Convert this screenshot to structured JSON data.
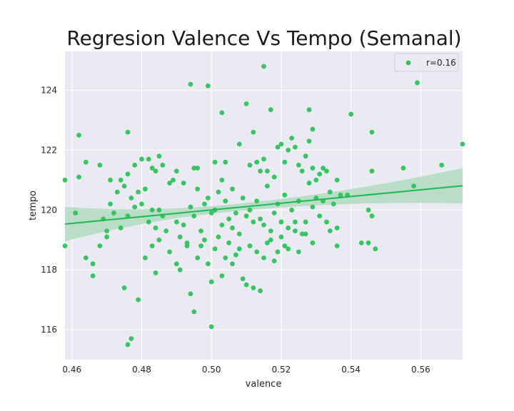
{
  "chart_data": {
    "type": "scatter",
    "title": "Regresion Valence Vs Tempo (Semanal)",
    "xlabel": "valence",
    "ylabel": "tempo",
    "xlim": [
      0.458,
      0.572
    ],
    "ylim": [
      115.0,
      125.3
    ],
    "xticks": [
      0.46,
      0.48,
      0.5,
      0.52,
      0.54,
      0.56
    ],
    "xtick_labels": [
      "0.46",
      "0.48",
      "0.50",
      "0.52",
      "0.54",
      "0.56"
    ],
    "yticks": [
      116,
      118,
      120,
      122,
      124
    ],
    "ytick_labels": [
      "116",
      "118",
      "120",
      "122",
      "124"
    ],
    "grid": true,
    "legend": {
      "label": "r=0.16",
      "placement": "top-right"
    },
    "colors": {
      "points": "#2ec25a",
      "line": "#1db954",
      "band": "#a9d8b8",
      "background": "#eaeaf2",
      "grid": "#ffffff"
    },
    "regression": {
      "x": [
        0.458,
        0.572
      ],
      "y": [
        119.53,
        120.81
      ],
      "ci_lower": [
        118.95,
        120.22
      ],
      "ci_upper": [
        120.1,
        121.4
      ],
      "ci_center_x": 0.505
    },
    "points": [
      [
        0.515,
        124.8
      ],
      [
        0.494,
        124.2
      ],
      [
        0.499,
        124.15
      ],
      [
        0.559,
        124.25
      ],
      [
        0.503,
        123.25
      ],
      [
        0.51,
        123.55
      ],
      [
        0.517,
        123.35
      ],
      [
        0.528,
        123.35
      ],
      [
        0.54,
        123.2
      ],
      [
        0.462,
        122.5
      ],
      [
        0.476,
        122.6
      ],
      [
        0.512,
        122.6
      ],
      [
        0.529,
        122.7
      ],
      [
        0.546,
        122.6
      ],
      [
        0.572,
        122.2
      ],
      [
        0.464,
        121.6
      ],
      [
        0.462,
        121.1
      ],
      [
        0.458,
        121.0
      ],
      [
        0.468,
        121.5
      ],
      [
        0.471,
        121.0
      ],
      [
        0.473,
        120.6
      ],
      [
        0.474,
        121.0
      ],
      [
        0.476,
        121.2
      ],
      [
        0.478,
        121.5
      ],
      [
        0.48,
        121.7
      ],
      [
        0.482,
        121.7
      ],
      [
        0.483,
        121.4
      ],
      [
        0.484,
        121.3
      ],
      [
        0.485,
        121.8
      ],
      [
        0.486,
        121.5
      ],
      [
        0.489,
        121.0
      ],
      [
        0.49,
        121.3
      ],
      [
        0.492,
        120.9
      ],
      [
        0.495,
        121.4
      ],
      [
        0.496,
        121.4
      ],
      [
        0.501,
        121.6
      ],
      [
        0.504,
        121.6
      ],
      [
        0.503,
        121.0
      ],
      [
        0.506,
        120.7
      ],
      [
        0.508,
        122.2
      ],
      [
        0.511,
        121.5
      ],
      [
        0.513,
        121.6
      ],
      [
        0.514,
        121.3
      ],
      [
        0.515,
        121.7
      ],
      [
        0.516,
        121.3
      ],
      [
        0.518,
        121.1
      ],
      [
        0.519,
        122.1
      ],
      [
        0.52,
        122.2
      ],
      [
        0.521,
        121.6
      ],
      [
        0.522,
        122.0
      ],
      [
        0.523,
        122.4
      ],
      [
        0.524,
        122.1
      ],
      [
        0.525,
        121.5
      ],
      [
        0.526,
        121.3
      ],
      [
        0.527,
        121.8
      ],
      [
        0.528,
        122.3
      ],
      [
        0.529,
        121.4
      ],
      [
        0.53,
        121.0
      ],
      [
        0.531,
        121.2
      ],
      [
        0.532,
        121.4
      ],
      [
        0.533,
        121.3
      ],
      [
        0.536,
        121.0
      ],
      [
        0.546,
        121.3
      ],
      [
        0.555,
        121.4
      ],
      [
        0.558,
        120.8
      ],
      [
        0.566,
        121.5
      ],
      [
        0.469,
        119.7
      ],
      [
        0.47,
        119.3
      ],
      [
        0.471,
        120.2
      ],
      [
        0.472,
        119.9
      ],
      [
        0.474,
        119.4
      ],
      [
        0.475,
        120.8
      ],
      [
        0.476,
        119.8
      ],
      [
        0.477,
        120.4
      ],
      [
        0.478,
        120.1
      ],
      [
        0.479,
        120.6
      ],
      [
        0.48,
        120.2
      ],
      [
        0.481,
        120.7
      ],
      [
        0.482,
        119.6
      ],
      [
        0.483,
        120.0
      ],
      [
        0.484,
        119.4
      ],
      [
        0.485,
        120.0
      ],
      [
        0.486,
        119.8
      ],
      [
        0.487,
        119.3
      ],
      [
        0.488,
        120.9
      ],
      [
        0.49,
        119.6
      ],
      [
        0.491,
        119.1
      ],
      [
        0.492,
        119.5
      ],
      [
        0.493,
        118.8
      ],
      [
        0.494,
        120.1
      ],
      [
        0.495,
        119.8
      ],
      [
        0.496,
        120.7
      ],
      [
        0.497,
        119.3
      ],
      [
        0.498,
        120.2
      ],
      [
        0.499,
        120.4
      ],
      [
        0.5,
        119.9
      ],
      [
        0.501,
        120.0
      ],
      [
        0.502,
        120.6
      ],
      [
        0.503,
        119.5
      ],
      [
        0.504,
        120.3
      ],
      [
        0.505,
        119.7
      ],
      [
        0.506,
        119.4
      ],
      [
        0.507,
        119.9
      ],
      [
        0.508,
        119.2
      ],
      [
        0.509,
        120.4
      ],
      [
        0.51,
        119.8
      ],
      [
        0.511,
        120.0
      ],
      [
        0.512,
        119.6
      ],
      [
        0.513,
        120.3
      ],
      [
        0.514,
        119.7
      ],
      [
        0.515,
        119.5
      ],
      [
        0.516,
        120.8
      ],
      [
        0.517,
        119.3
      ],
      [
        0.518,
        119.9
      ],
      [
        0.519,
        120.2
      ],
      [
        0.52,
        119.6
      ],
      [
        0.521,
        120.5
      ],
      [
        0.522,
        119.4
      ],
      [
        0.523,
        120.0
      ],
      [
        0.524,
        119.6
      ],
      [
        0.525,
        120.3
      ],
      [
        0.526,
        119.2
      ],
      [
        0.527,
        119.6
      ],
      [
        0.528,
        120.9
      ],
      [
        0.529,
        120.1
      ],
      [
        0.53,
        120.4
      ],
      [
        0.531,
        119.8
      ],
      [
        0.532,
        120.3
      ],
      [
        0.533,
        119.6
      ],
      [
        0.534,
        120.6
      ],
      [
        0.535,
        120.2
      ],
      [
        0.536,
        119.4
      ],
      [
        0.537,
        120.5
      ],
      [
        0.546,
        119.8
      ],
      [
        0.458,
        118.8
      ],
      [
        0.464,
        118.4
      ],
      [
        0.466,
        118.2
      ],
      [
        0.466,
        117.8
      ],
      [
        0.468,
        118.8
      ],
      [
        0.47,
        119.1
      ],
      [
        0.475,
        117.4
      ],
      [
        0.479,
        117.0
      ],
      [
        0.481,
        118.4
      ],
      [
        0.483,
        118.8
      ],
      [
        0.484,
        117.9
      ],
      [
        0.485,
        119.0
      ],
      [
        0.488,
        118.6
      ],
      [
        0.49,
        118.2
      ],
      [
        0.491,
        118.0
      ],
      [
        0.493,
        118.9
      ],
      [
        0.494,
        117.2
      ],
      [
        0.495,
        116.6
      ],
      [
        0.496,
        118.4
      ],
      [
        0.497,
        118.8
      ],
      [
        0.498,
        119.0
      ],
      [
        0.499,
        118.2
      ],
      [
        0.5,
        117.6
      ],
      [
        0.501,
        118.7
      ],
      [
        0.502,
        119.1
      ],
      [
        0.503,
        117.8
      ],
      [
        0.504,
        118.4
      ],
      [
        0.505,
        118.9
      ],
      [
        0.506,
        118.2
      ],
      [
        0.507,
        118.5
      ],
      [
        0.508,
        118.7
      ],
      [
        0.509,
        117.7
      ],
      [
        0.51,
        117.5
      ],
      [
        0.511,
        118.8
      ],
      [
        0.512,
        117.4
      ],
      [
        0.513,
        118.6
      ],
      [
        0.514,
        117.3
      ],
      [
        0.515,
        118.4
      ],
      [
        0.516,
        118.9
      ],
      [
        0.517,
        119.0
      ],
      [
        0.518,
        118.3
      ],
      [
        0.519,
        118.6
      ],
      [
        0.52,
        119.1
      ],
      [
        0.521,
        118.8
      ],
      [
        0.522,
        118.7
      ],
      [
        0.524,
        119.3
      ],
      [
        0.525,
        118.6
      ],
      [
        0.527,
        119.2
      ],
      [
        0.529,
        118.9
      ],
      [
        0.536,
        118.8
      ],
      [
        0.543,
        118.9
      ],
      [
        0.545,
        118.9
      ],
      [
        0.547,
        118.7
      ],
      [
        0.476,
        115.5
      ],
      [
        0.477,
        115.7
      ],
      [
        0.5,
        116.1
      ],
      [
        0.461,
        119.9
      ],
      [
        0.545,
        120.0
      ],
      [
        0.534,
        119.3
      ],
      [
        0.539,
        120.5
      ]
    ]
  }
}
